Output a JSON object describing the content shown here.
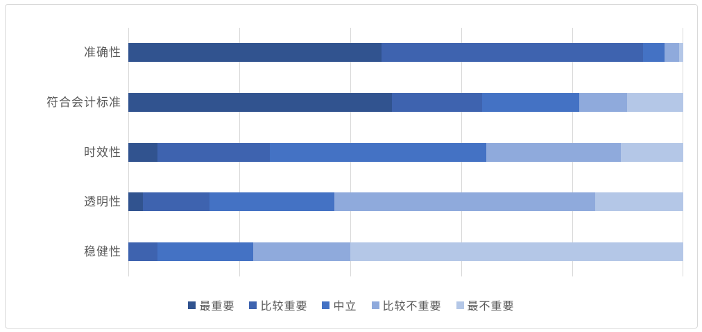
{
  "chart_data": {
    "type": "bar",
    "stacked": true,
    "orientation": "horizontal",
    "title": "",
    "xlabel": "",
    "ylabel": "",
    "xlim": [
      0,
      100
    ],
    "gridline_interval_pct": 20,
    "grid": true,
    "legend_position": "bottom",
    "categories": [
      "准确性",
      "符合会计标准",
      "时效性",
      "透明性",
      "稳健性"
    ],
    "series": [
      {
        "name": "最重要",
        "color": "#31538f",
        "values": [
          45.6,
          47.5,
          5.2,
          2.6,
          0.0
        ]
      },
      {
        "name": "比较重要",
        "color": "#3e63af",
        "values": [
          47.1,
          16.2,
          20.3,
          12.0,
          5.3
        ]
      },
      {
        "name": "中立",
        "color": "#4472c4",
        "values": [
          3.9,
          17.5,
          39.0,
          22.5,
          17.2
        ]
      },
      {
        "name": "比较不重要",
        "color": "#8faadc",
        "values": [
          2.7,
          8.7,
          24.3,
          47.0,
          17.5
        ]
      },
      {
        "name": "最不重要",
        "color": "#b4c7e7",
        "values": [
          0.7,
          10.1,
          11.2,
          15.9,
          60.0
        ]
      }
    ]
  },
  "style": {
    "gridline_color": "#d9d9d9",
    "border_color": "#d9d9d9",
    "text_color": "#595959",
    "background": "#ffffff"
  }
}
